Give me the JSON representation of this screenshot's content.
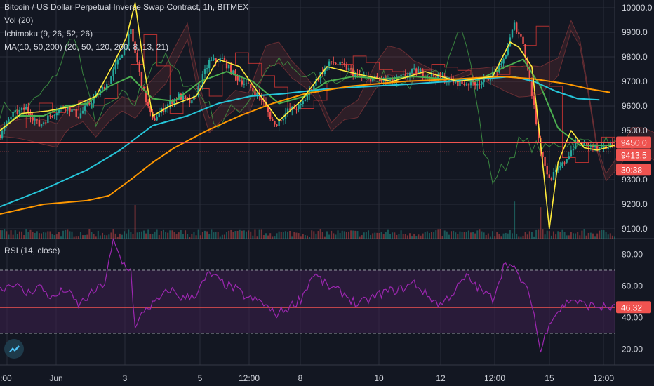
{
  "header": {
    "title": "Bitcoin / US Dollar Perpetual Inverse Swap Contract, 1h, BITMEX",
    "vol": "Vol (20)",
    "ichimoku": "Ichimoku (9, 26, 52, 26)",
    "ma": "MA(10, 50,200) (20, 50, 120, 200, 8, 13, 21)"
  },
  "rsi_legend": "RSI (14, close)",
  "price_tags": {
    "last": "9450.0",
    "second": "9413.5",
    "countdown": "30:38",
    "rsi": "46.32"
  },
  "colors": {
    "bg": "#131722",
    "grid": "#2a2e39",
    "up": "#26a69a",
    "down": "#ef5350",
    "ma_yellow": "#ffeb3b",
    "ma_teal": "#26c6da",
    "ma_orange": "#ff9800",
    "ma_green": "#4caf50",
    "kijun": "#e53935",
    "chikou": "#43a047",
    "rsi_line": "#9c27b0",
    "rsi_band": "#3d1f4d"
  },
  "chart_data": [
    {
      "type": "candlestick",
      "title": "Bitcoin / US Dollar Perpetual Inverse Swap Contract, 1h, BITMEX",
      "x_ticks": [
        ":00",
        "Jun",
        "3",
        "5",
        "12:00",
        "8",
        "10",
        "12",
        "12:00",
        "15",
        "12:00"
      ],
      "y_ticks": [
        "10000.0",
        "9900.0",
        "9800.0",
        "9700.0",
        "9600.0",
        "9500.0",
        "9300.0",
        "9200.0",
        "9100.0"
      ],
      "ylim": [
        9060,
        10020
      ],
      "price_path": [
        [
          0,
          9480
        ],
        [
          5,
          9560
        ],
        [
          12,
          9590
        ],
        [
          18,
          9520
        ],
        [
          24,
          9570
        ],
        [
          30,
          9600
        ],
        [
          36,
          9560
        ],
        [
          42,
          9620
        ],
        [
          50,
          9700
        ],
        [
          56,
          9820
        ],
        [
          60,
          9900
        ],
        [
          66,
          9650
        ],
        [
          70,
          9540
        ],
        [
          76,
          9600
        ],
        [
          82,
          9640
        ],
        [
          88,
          9610
        ],
        [
          96,
          9780
        ],
        [
          102,
          9790
        ],
        [
          108,
          9720
        ],
        [
          114,
          9680
        ],
        [
          120,
          9630
        ],
        [
          126,
          9520
        ],
        [
          132,
          9580
        ],
        [
          138,
          9600
        ],
        [
          146,
          9720
        ],
        [
          152,
          9780
        ],
        [
          158,
          9760
        ],
        [
          164,
          9720
        ],
        [
          172,
          9710
        ],
        [
          180,
          9700
        ],
        [
          190,
          9740
        ],
        [
          200,
          9720
        ],
        [
          212,
          9690
        ],
        [
          222,
          9700
        ],
        [
          230,
          9760
        ],
        [
          236,
          9930
        ],
        [
          240,
          9860
        ],
        [
          244,
          9650
        ],
        [
          248,
          9420
        ],
        [
          252,
          9300
        ],
        [
          258,
          9360
        ],
        [
          264,
          9450
        ],
        [
          270,
          9440
        ],
        [
          276,
          9420
        ],
        [
          282,
          9450
        ]
      ],
      "series": [
        {
          "name": "MA 20",
          "values": [
            [
              0,
              9500
            ],
            [
              8,
              9560
            ],
            [
              20,
              9560
            ],
            [
              30,
              9600
            ],
            [
              40,
              9610
            ],
            [
              50,
              9680
            ],
            [
              60,
              9720
            ],
            [
              70,
              9630
            ],
            [
              80,
              9620
            ],
            [
              92,
              9700
            ],
            [
              104,
              9740
            ],
            [
              116,
              9700
            ],
            [
              128,
              9610
            ],
            [
              140,
              9640
            ],
            [
              150,
              9700
            ],
            [
              162,
              9720
            ],
            [
              176,
              9710
            ],
            [
              190,
              9720
            ],
            [
              204,
              9710
            ],
            [
              218,
              9700
            ],
            [
              232,
              9760
            ],
            [
              240,
              9790
            ],
            [
              248,
              9680
            ],
            [
              256,
              9510
            ],
            [
              266,
              9440
            ],
            [
              274,
              9440
            ],
            [
              282,
              9440
            ]
          ]
        },
        {
          "name": "MA 50",
          "values": [
            [
              0,
              9190
            ],
            [
              20,
              9260
            ],
            [
              40,
              9340
            ],
            [
              55,
              9420
            ],
            [
              70,
              9520
            ],
            [
              86,
              9560
            ],
            [
              100,
              9610
            ],
            [
              115,
              9640
            ],
            [
              130,
              9650
            ],
            [
              150,
              9670
            ],
            [
              170,
              9680
            ],
            [
              190,
              9690
            ],
            [
              205,
              9700
            ],
            [
              220,
              9710
            ],
            [
              235,
              9720
            ],
            [
              245,
              9700
            ],
            [
              255,
              9660
            ],
            [
              265,
              9630
            ],
            [
              275,
              9625
            ]
          ]
        },
        {
          "name": "MA 120",
          "values": [
            [
              0,
              9160
            ],
            [
              20,
              9200
            ],
            [
              40,
              9215
            ],
            [
              50,
              9235
            ],
            [
              60,
              9300
            ],
            [
              70,
              9370
            ],
            [
              80,
              9430
            ],
            [
              95,
              9500
            ],
            [
              110,
              9560
            ],
            [
              125,
              9610
            ],
            [
              140,
              9650
            ],
            [
              160,
              9680
            ],
            [
              185,
              9700
            ],
            [
              210,
              9710
            ],
            [
              230,
              9720
            ],
            [
              245,
              9710
            ],
            [
              260,
              9690
            ],
            [
              270,
              9670
            ],
            [
              280,
              9655
            ]
          ]
        },
        {
          "name": "MA 8",
          "values": [
            [
              0,
              9500
            ],
            [
              10,
              9570
            ],
            [
              22,
              9580
            ],
            [
              34,
              9600
            ],
            [
              44,
              9640
            ],
            [
              52,
              9770
            ],
            [
              58,
              9880
            ],
            [
              62,
              10020
            ],
            [
              66,
              9760
            ],
            [
              70,
              9560
            ],
            [
              78,
              9600
            ],
            [
              90,
              9640
            ],
            [
              100,
              9790
            ],
            [
              110,
              9760
            ],
            [
              118,
              9660
            ],
            [
              128,
              9540
            ],
            [
              138,
              9620
            ],
            [
              150,
              9760
            ],
            [
              164,
              9730
            ],
            [
              180,
              9700
            ],
            [
              195,
              9740
            ],
            [
              210,
              9700
            ],
            [
              226,
              9720
            ],
            [
              234,
              9860
            ],
            [
              238,
              9840
            ],
            [
              244,
              9760
            ],
            [
              248,
              9450
            ],
            [
              252,
              9100
            ],
            [
              256,
              9370
            ],
            [
              262,
              9500
            ],
            [
              268,
              9430
            ],
            [
              274,
              9420
            ],
            [
              282,
              9440
            ]
          ]
        }
      ]
    },
    {
      "type": "line",
      "title": "RSI (14, close)",
      "y_ticks": [
        "80.00",
        "60.00",
        "40.00",
        "20.00"
      ],
      "ylim": [
        10,
        90
      ],
      "bands": [
        30,
        70
      ],
      "series": [
        {
          "name": "RSI",
          "values": [
            [
              0,
              58
            ],
            [
              6,
              62
            ],
            [
              12,
              55
            ],
            [
              18,
              60
            ],
            [
              24,
              52
            ],
            [
              30,
              58
            ],
            [
              36,
              48
            ],
            [
              42,
              55
            ],
            [
              48,
              62
            ],
            [
              52,
              88
            ],
            [
              56,
              75
            ],
            [
              60,
              70
            ],
            [
              62,
              32
            ],
            [
              66,
              45
            ],
            [
              72,
              50
            ],
            [
              78,
              58
            ],
            [
              84,
              52
            ],
            [
              90,
              55
            ],
            [
              96,
              68
            ],
            [
              102,
              62
            ],
            [
              108,
              58
            ],
            [
              114,
              52
            ],
            [
              120,
              50
            ],
            [
              126,
              42
            ],
            [
              132,
              46
            ],
            [
              138,
              52
            ],
            [
              144,
              68
            ],
            [
              150,
              60
            ],
            [
              158,
              55
            ],
            [
              164,
              48
            ],
            [
              170,
              52
            ],
            [
              176,
              56
            ],
            [
              184,
              58
            ],
            [
              190,
              62
            ],
            [
              196,
              54
            ],
            [
              202,
              48
            ],
            [
              208,
              56
            ],
            [
              214,
              66
            ],
            [
              220,
              58
            ],
            [
              226,
              52
            ],
            [
              232,
              76
            ],
            [
              236,
              70
            ],
            [
              240,
              62
            ],
            [
              244,
              50
            ],
            [
              248,
              18
            ],
            [
              252,
              38
            ],
            [
              256,
              44
            ],
            [
              262,
              52
            ],
            [
              268,
              48
            ],
            [
              274,
              47
            ],
            [
              282,
              46
            ]
          ]
        }
      ]
    }
  ]
}
